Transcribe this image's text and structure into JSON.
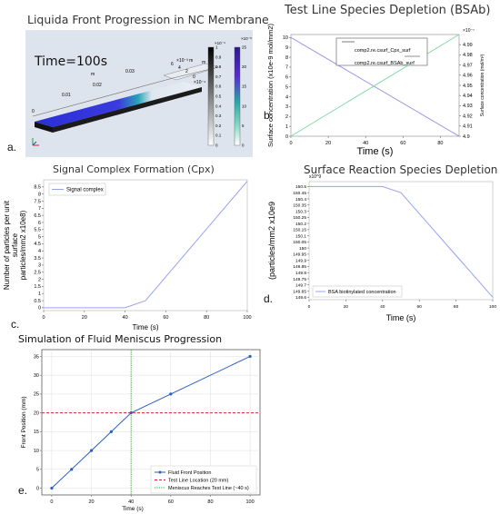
{
  "panels": {
    "a": {
      "label": "a.",
      "title": "Liquida Front Progression in NC Membrane",
      "time_text": "Time=100s",
      "axis_letters": [
        "m",
        "m"
      ],
      "axis_ticks": [
        "0",
        "0.01",
        "0.02",
        "0.03"
      ],
      "side_ticks": [
        "6",
        "4",
        "2",
        "0"
      ],
      "exp_labels": [
        "×10⁻³ m",
        "×10⁻⁴"
      ],
      "colorbar1": {
        "exp": "×10⁻⁹",
        "ticks": [
          "1",
          "0.9",
          "0.8",
          "0.7",
          "0.6",
          "0.5",
          "0.4",
          "0.3",
          "0.2",
          "0.1",
          "0"
        ]
      },
      "colorbar2": {
        "exp": "×10⁻⁸",
        "ticks": [
          "25",
          "20",
          "15",
          "10",
          "5",
          "0"
        ]
      },
      "colors": {
        "bg": "#dde4ee",
        "front": "#2a2fd6",
        "grey": "#444444"
      }
    },
    "b": {
      "label": "b."
    },
    "c": {
      "label": "c."
    },
    "d": {
      "label": "d."
    },
    "e": {
      "label": "e."
    }
  },
  "chart_data": [
    {
      "id": "b",
      "type": "line",
      "title": "Test Line Species Depletion (BSAb)",
      "xlabel": "Time (s)",
      "ylabel": "Surface concentration (x10e-9 mol/mm2)",
      "ylabel2": "Surface concentration (mol/m²)",
      "x_ticks": [
        "0",
        "20",
        "40",
        "60",
        "80"
      ],
      "y_ticks": [
        "0",
        "1",
        "2",
        "3",
        "4",
        "5",
        "6",
        "7",
        "8",
        "9",
        "10"
      ],
      "y2_exp": "×10⁻⁷",
      "y2_ticks": [
        "4.9",
        "4.91",
        "4.92",
        "4.93",
        "4.94",
        "4.95",
        "4.96",
        "4.97",
        "4.98",
        "4.99"
      ],
      "xlim": [
        0,
        90
      ],
      "ylim": [
        0,
        10.3
      ],
      "y2lim": [
        4.9,
        5.0
      ],
      "series": [
        {
          "name": "comp2.re.csurf_Cpx_surf",
          "axis": "left",
          "color": "#8f8fe6",
          "x": [
            0,
            90
          ],
          "y": [
            10,
            0
          ]
        },
        {
          "name": "comp2.re.csurf_BSAb_surf",
          "axis": "right",
          "color": "#7fd8a4",
          "x": [
            0,
            90
          ],
          "y": [
            4.9,
            5.0
          ]
        }
      ]
    },
    {
      "id": "c",
      "type": "line",
      "title": "Signal Complex Formation (Cpx)",
      "xlabel": "Time (s)",
      "ylabel": "Number of particles per unit surface (particles/mm2 x10e8)",
      "x_ticks": [
        "0",
        "20",
        "40",
        "60",
        "80",
        "100"
      ],
      "y_ticks": [
        "0",
        "0.5",
        "1",
        "1.5",
        "2",
        "2.5",
        "3",
        "3.5",
        "4",
        "4.5",
        "5",
        "5.5",
        "6",
        "6.5",
        "7",
        "7.5",
        "8",
        "8.5"
      ],
      "xlim": [
        0,
        100
      ],
      "ylim": [
        -0.2,
        9.0
      ],
      "series": [
        {
          "name": "Signal complex",
          "color": "#9aa0f0",
          "x": [
            0,
            40,
            50,
            100
          ],
          "y": [
            0,
            0,
            0.5,
            8.9
          ]
        }
      ]
    },
    {
      "id": "d",
      "type": "line",
      "title": "Surface Reaction Species Depletion",
      "xlabel": "Time (s)",
      "ylabel": "(particles/mm2 x10e9",
      "y_exp": "x10^9",
      "x_ticks": [
        "0",
        "20",
        "40",
        "60",
        "80",
        "100"
      ],
      "y_ticks": [
        "149.6",
        "149.65",
        "149.7",
        "149.75",
        "149.8",
        "149.85",
        "149.9",
        "149.95",
        "150",
        "150.05",
        "150.1",
        "150.15",
        "150.2",
        "150.25",
        "150.3",
        "150.35",
        "150.4",
        "150.45",
        "150.5"
      ],
      "xlim": [
        0,
        100
      ],
      "ylim": [
        149.58,
        150.54
      ],
      "series": [
        {
          "name": "BSA biotinylated concentration",
          "color": "#9aa0f0",
          "x": [
            0,
            40,
            50,
            100
          ],
          "y": [
            150.5,
            150.5,
            150.45,
            149.6
          ]
        }
      ]
    },
    {
      "id": "e",
      "type": "line",
      "title": "Simulation of Fluid Meniscus Progression",
      "xlabel": "Time (s)",
      "ylabel": "Front Position (mm)",
      "x_ticks": [
        "0",
        "20",
        "40",
        "60",
        "80",
        "100"
      ],
      "y_ticks": [
        "0",
        "5",
        "10",
        "15",
        "20",
        "25",
        "30",
        "35"
      ],
      "xlim": [
        -5,
        105
      ],
      "ylim": [
        -1.8,
        36.8
      ],
      "grid": true,
      "series": [
        {
          "name": "Fluid Front Position",
          "color": "#2a5fc1",
          "x": [
            0,
            10,
            20,
            30,
            40,
            60,
            100
          ],
          "y": [
            0,
            5,
            10,
            15,
            20,
            25,
            35
          ]
        }
      ],
      "reference_lines": [
        {
          "name": "Test Line Location (20 mm)",
          "orientation": "horizontal",
          "value": 20,
          "color": "#d62728"
        },
        {
          "name": "Meniscus Reaches Test Line (~40 s)",
          "orientation": "vertical",
          "value": 40,
          "color": "#2ca02c"
        }
      ]
    }
  ]
}
